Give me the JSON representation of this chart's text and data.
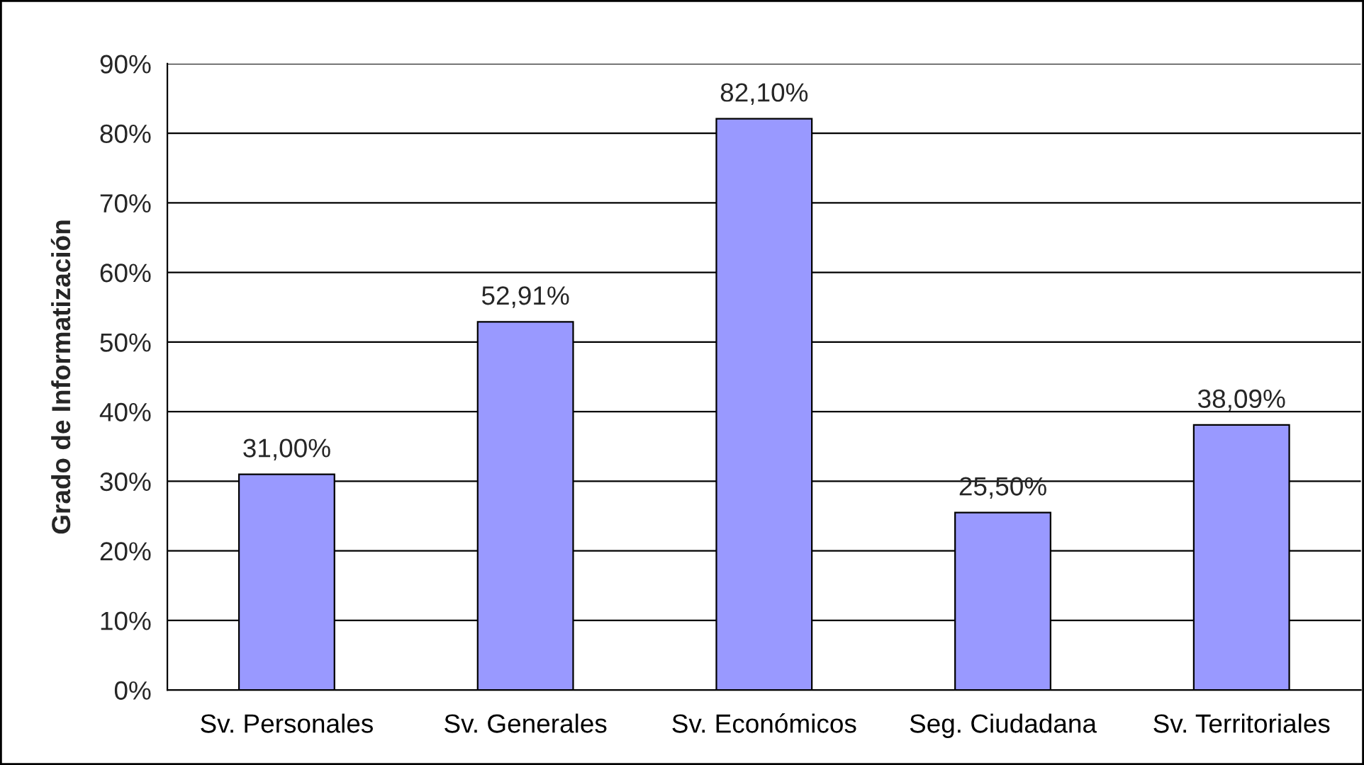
{
  "chart_data": {
    "type": "bar",
    "ylabel": "Grado de Informatización",
    "categories": [
      "Sv. Personales",
      "Sv. Generales",
      "Sv. Económicos",
      "Seg. Ciudadana",
      "Sv. Territoriales"
    ],
    "values": [
      31.0,
      52.91,
      82.1,
      25.5,
      38.09
    ],
    "value_labels": [
      "31,00%",
      "52,91%",
      "82,10%",
      "25,50%",
      "38,09%"
    ],
    "color": "#9999ff",
    "ylim": [
      0,
      90
    ],
    "yticks": [
      {
        "value": 0,
        "label": "0%"
      },
      {
        "value": 10,
        "label": "10%"
      },
      {
        "value": 20,
        "label": "20%"
      },
      {
        "value": 30,
        "label": "30%"
      },
      {
        "value": 40,
        "label": "40%"
      },
      {
        "value": 50,
        "label": "50%"
      },
      {
        "value": 60,
        "label": "60%"
      },
      {
        "value": 70,
        "label": "70%"
      },
      {
        "value": 80,
        "label": "80%"
      },
      {
        "value": 90,
        "label": "90%"
      }
    ],
    "grid": "y"
  }
}
